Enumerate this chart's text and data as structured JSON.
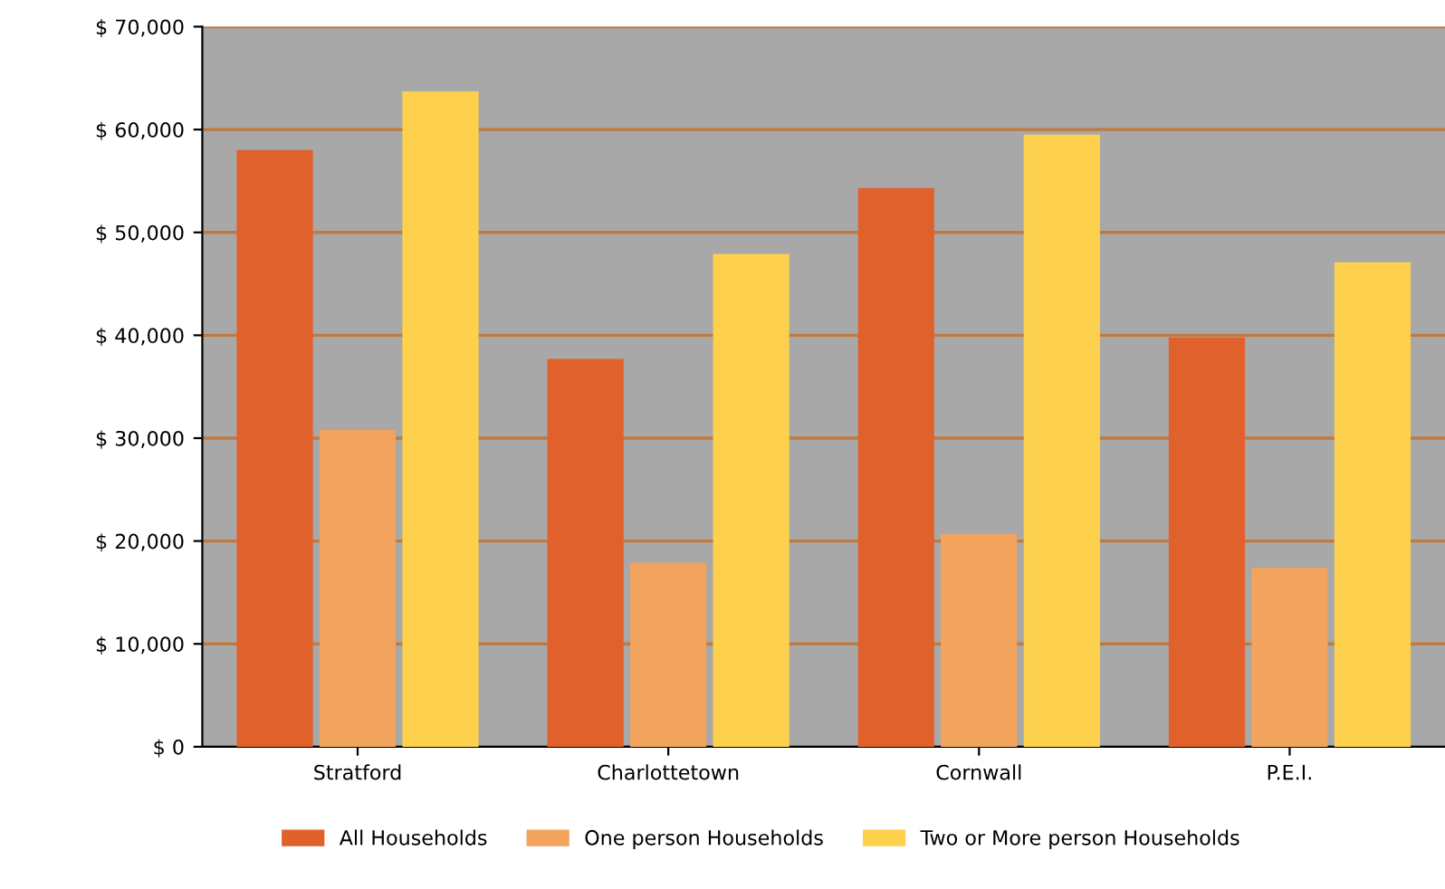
{
  "chart_data": {
    "type": "bar",
    "categories": [
      "Stratford",
      "Charlottetown",
      "Cornwall",
      "P.E.I."
    ],
    "series": [
      {
        "name": "All Households",
        "color": "#e0612b",
        "values": [
          58000,
          37700,
          54300,
          39800
        ]
      },
      {
        "name": "One person Households",
        "color": "#f2a35e",
        "values": [
          30800,
          17900,
          20700,
          17400
        ]
      },
      {
        "name": "Two or More person Households",
        "color": "#fdd14d",
        "values": [
          63700,
          47900,
          59500,
          47100
        ]
      }
    ],
    "ylim": [
      0,
      70000
    ],
    "yticks": [
      {
        "value": 0,
        "label": "$ 0"
      },
      {
        "value": 10000,
        "label": "$ 10,000"
      },
      {
        "value": 20000,
        "label": "$ 20,000"
      },
      {
        "value": 30000,
        "label": "$ 30,000"
      },
      {
        "value": 40000,
        "label": "$ 40,000"
      },
      {
        "value": 50000,
        "label": "$ 50,000"
      },
      {
        "value": 60000,
        "label": "$ 60,000"
      },
      {
        "value": 70000,
        "label": "$ 70,000"
      }
    ],
    "grid": "y",
    "legend": "bottom"
  }
}
